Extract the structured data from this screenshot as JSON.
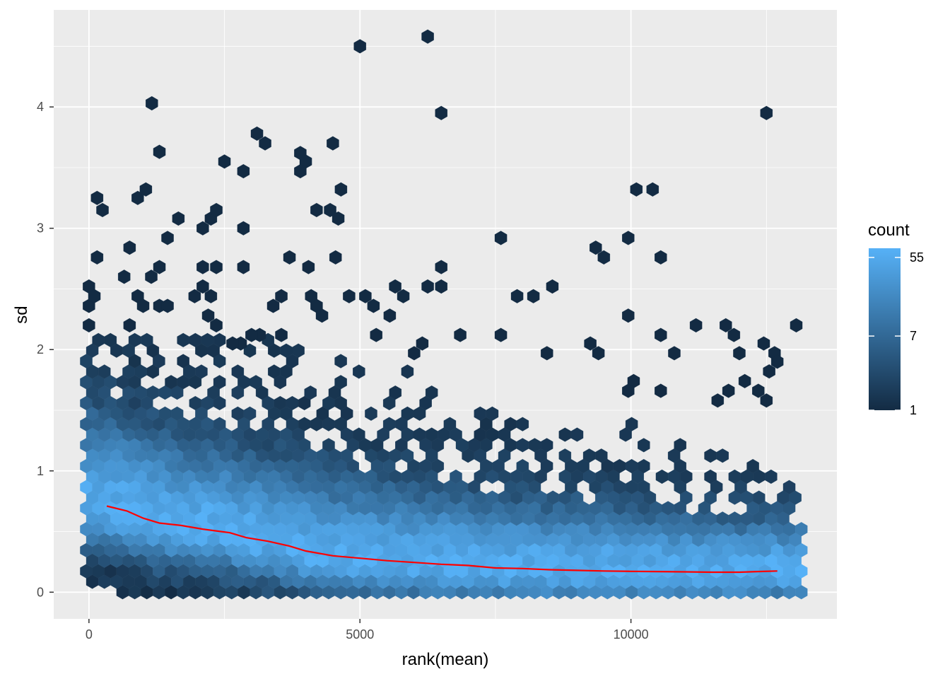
{
  "chart_data": {
    "type": "hexbin",
    "xlabel": "rank(mean)",
    "ylabel": "sd",
    "xlim": [
      -650,
      13800
    ],
    "ylim": [
      -0.22,
      4.8
    ],
    "x_ticks": [
      0,
      5000,
      10000
    ],
    "x_tick_labels": [
      "0",
      "5000",
      "10000"
    ],
    "y_ticks": [
      0,
      1,
      2,
      3,
      4
    ],
    "y_tick_labels": [
      "0",
      "1",
      "2",
      "3",
      "4"
    ],
    "grid": true,
    "legend": {
      "title": "count",
      "position": "right",
      "breaks": [
        55,
        7,
        1
      ],
      "break_labels": [
        "55",
        "7",
        "1"
      ],
      "low_color": "#132B43",
      "high_color": "#56B1F7",
      "scale": "log"
    },
    "smooth_line": {
      "color": "#ff0000",
      "x": [
        330,
        700,
        1000,
        1300,
        1700,
        2100,
        2600,
        2900,
        3300,
        3700,
        4000,
        4500,
        5000,
        5500,
        6000,
        6500,
        7000,
        7500,
        8000,
        8500,
        9000,
        9500,
        10000,
        10500,
        11000,
        11500,
        12000,
        12330,
        12700
      ],
      "y": [
        0.71,
        0.67,
        0.61,
        0.57,
        0.55,
        0.52,
        0.49,
        0.45,
        0.42,
        0.38,
        0.34,
        0.3,
        0.28,
        0.26,
        0.245,
        0.23,
        0.22,
        0.2,
        0.195,
        0.185,
        0.18,
        0.175,
        0.172,
        0.17,
        0.168,
        0.165,
        0.165,
        0.17,
        0.175
      ]
    },
    "outlier_points": [
      [
        5000,
        4.5
      ],
      [
        6250,
        4.58
      ],
      [
        6500,
        3.95
      ],
      [
        1160,
        4.03
      ],
      [
        12500,
        3.95
      ],
      [
        1300,
        3.63
      ],
      [
        3100,
        3.78
      ],
      [
        3250,
        3.7
      ],
      [
        2500,
        3.55
      ],
      [
        2850,
        3.47
      ],
      [
        3900,
        3.62
      ],
      [
        4000,
        3.55
      ],
      [
        3900,
        3.47
      ],
      [
        4500,
        3.7
      ],
      [
        4650,
        3.32
      ],
      [
        150,
        3.25
      ],
      [
        250,
        3.15
      ],
      [
        900,
        3.25
      ],
      [
        1050,
        3.32
      ],
      [
        1650,
        3.08
      ],
      [
        2100,
        3.0
      ],
      [
        2250,
        3.08
      ],
      [
        2350,
        3.15
      ],
      [
        2850,
        3.0
      ],
      [
        4200,
        3.15
      ],
      [
        4450,
        3.15
      ],
      [
        4600,
        3.08
      ],
      [
        1450,
        2.92
      ],
      [
        10100,
        3.32
      ],
      [
        10400,
        3.32
      ],
      [
        9950,
        2.92
      ],
      [
        7600,
        2.92
      ],
      [
        9350,
        2.84
      ],
      [
        9500,
        2.76
      ],
      [
        10550,
        2.76
      ],
      [
        750,
        2.84
      ],
      [
        150,
        2.76
      ],
      [
        1150,
        2.6
      ],
      [
        1300,
        2.68
      ],
      [
        650,
        2.6
      ],
      [
        2100,
        2.68
      ],
      [
        2350,
        2.68
      ],
      [
        2850,
        2.68
      ],
      [
        3700,
        2.76
      ],
      [
        4050,
        2.68
      ],
      [
        4550,
        2.76
      ],
      [
        6250,
        2.52
      ],
      [
        6500,
        2.52
      ],
      [
        6500,
        2.68
      ],
      [
        8550,
        2.52
      ],
      [
        7900,
        2.44
      ],
      [
        8200,
        2.44
      ],
      [
        5650,
        2.52
      ],
      [
        5800,
        2.44
      ],
      [
        9950,
        2.28
      ],
      [
        5250,
        2.36
      ],
      [
        5550,
        2.28
      ],
      [
        0,
        2.52
      ],
      [
        0,
        2.36
      ],
      [
        100,
        2.44
      ],
      [
        0,
        2.2
      ],
      [
        900,
        2.44
      ],
      [
        1000,
        2.36
      ],
      [
        1300,
        2.36
      ],
      [
        1450,
        2.36
      ],
      [
        1950,
        2.44
      ],
      [
        2100,
        2.52
      ],
      [
        2250,
        2.44
      ],
      [
        2200,
        2.28
      ],
      [
        2350,
        2.2
      ],
      [
        3400,
        2.36
      ],
      [
        3550,
        2.44
      ],
      [
        4100,
        2.44
      ],
      [
        4200,
        2.36
      ],
      [
        4300,
        2.28
      ],
      [
        4800,
        2.44
      ],
      [
        5100,
        2.44
      ],
      [
        750,
        2.2
      ],
      [
        6850,
        2.12
      ],
      [
        7600,
        2.12
      ],
      [
        10550,
        2.12
      ],
      [
        11200,
        2.2
      ],
      [
        11750,
        2.2
      ],
      [
        11900,
        2.12
      ],
      [
        13050,
        2.2
      ],
      [
        10800,
        1.97
      ],
      [
        9250,
        2.05
      ],
      [
        8450,
        1.97
      ],
      [
        9400,
        1.97
      ],
      [
        12450,
        2.05
      ],
      [
        12650,
        1.97
      ],
      [
        12000,
        1.97
      ],
      [
        5300,
        2.12
      ],
      [
        6000,
        1.97
      ],
      [
        6150,
        2.05
      ],
      [
        3150,
        2.12
      ],
      [
        3550,
        2.12
      ],
      [
        3000,
        2.12
      ],
      [
        2800,
        2.05
      ],
      [
        2650,
        2.05
      ],
      [
        10050,
        1.74
      ],
      [
        9950,
        1.66
      ],
      [
        10550,
        1.66
      ],
      [
        11800,
        1.66
      ],
      [
        12100,
        1.74
      ],
      [
        11600,
        1.58
      ],
      [
        12350,
        1.66
      ],
      [
        12500,
        1.58
      ],
      [
        12550,
        1.82
      ],
      [
        12700,
        1.9
      ]
    ]
  }
}
